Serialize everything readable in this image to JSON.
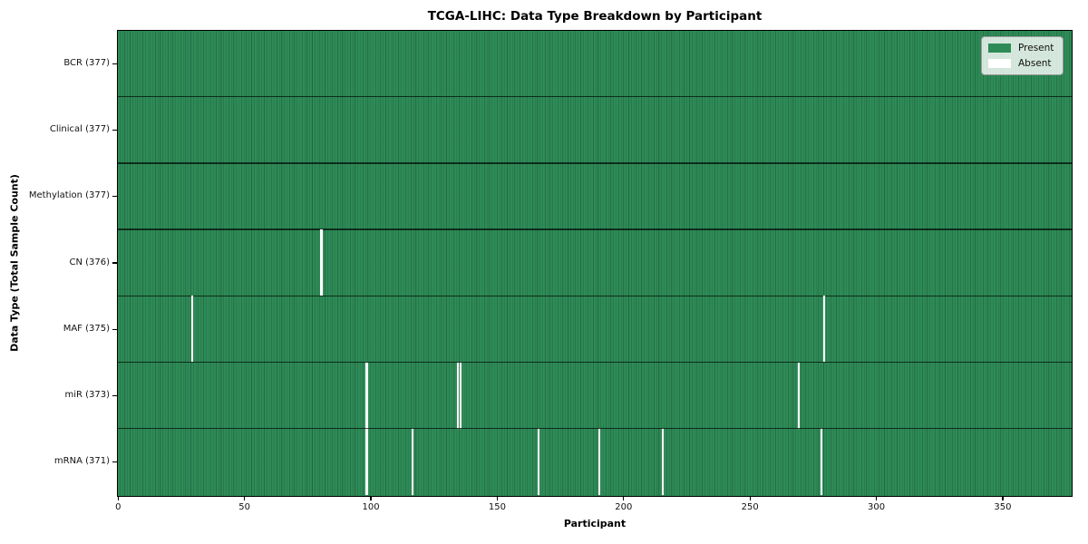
{
  "chart_data": {
    "type": "heatmap",
    "title": "TCGA-LIHC: Data Type Breakdown by Participant",
    "xlabel": "Participant",
    "ylabel": "Data Type (Total Sample Count)",
    "x_ticks": [
      0,
      50,
      100,
      150,
      200,
      250,
      300,
      350
    ],
    "x_range": [
      0,
      377
    ],
    "n_participants": 377,
    "grid": false,
    "rows": [
      {
        "label": "BCR (377)",
        "total_samples": 377,
        "absent_participants": []
      },
      {
        "label": "Clinical (377)",
        "total_samples": 377,
        "absent_participants": []
      },
      {
        "label": "Methylation (377)",
        "total_samples": 377,
        "absent_participants": []
      },
      {
        "label": "CN (376)",
        "total_samples": 376,
        "absent_participants": [
          80
        ]
      },
      {
        "label": "MAF (375)",
        "total_samples": 375,
        "absent_participants": [
          29,
          279
        ]
      },
      {
        "label": "miR (373)",
        "total_samples": 373,
        "absent_participants": [
          98,
          134,
          135,
          269
        ]
      },
      {
        "label": "mRNA (371)",
        "total_samples": 371,
        "absent_participants": [
          98,
          116,
          166,
          190,
          215,
          278
        ]
      }
    ],
    "legend": {
      "position": "upper-right",
      "entries": [
        {
          "label": "Present",
          "color": "#2e8b57"
        },
        {
          "label": "Absent",
          "color": "#ffffff"
        }
      ]
    },
    "colors": {
      "present": "#2e8b57",
      "absent": "#ffffff",
      "cell_edge": "#1c5737",
      "row_separator": "#0a160c",
      "axis": "#000000"
    }
  }
}
